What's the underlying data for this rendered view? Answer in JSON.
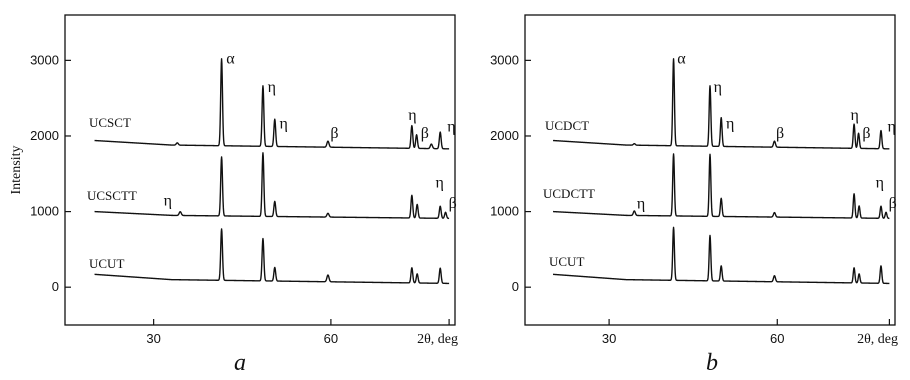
{
  "chart_data": [
    {
      "type": "line",
      "panel_label": "a",
      "ylabel": "Intensity",
      "xlabel": "2θ, deg",
      "xlim": [
        15,
        81
      ],
      "ylim": [
        -500,
        3600
      ],
      "x_ticks": [
        30,
        60
      ],
      "y_ticks": [
        0,
        1000,
        2000,
        3000
      ],
      "series": [
        {
          "name": "UCSCT",
          "offset": 1800,
          "baseline": [
            [
              20,
              140
            ],
            [
              33,
              80
            ],
            [
              80,
              30
            ]
          ],
          "peaks": [
            {
              "x": 34.0,
              "h": 30,
              "w": 0.35
            },
            {
              "x": 41.5,
              "h": 1150,
              "w": 0.3
            },
            {
              "x": 48.5,
              "h": 800,
              "w": 0.3
            },
            {
              "x": 50.5,
              "h": 360,
              "w": 0.3
            },
            {
              "x": 59.5,
              "h": 80,
              "w": 0.35
            },
            {
              "x": 73.7,
              "h": 300,
              "w": 0.3
            },
            {
              "x": 74.5,
              "h": 180,
              "w": 0.3
            },
            {
              "x": 77.0,
              "h": 60,
              "w": 0.35
            },
            {
              "x": 78.5,
              "h": 220,
              "w": 0.3
            }
          ],
          "annotations": [
            {
              "text": "α",
              "x": 43.0,
              "y": 2960
            },
            {
              "text": "η",
              "x": 50.0,
              "y": 2580
            },
            {
              "text": "η",
              "x": 52.0,
              "y": 2100
            },
            {
              "text": "β",
              "x": 60.6,
              "y": 1970
            },
            {
              "text": "η",
              "x": 73.8,
              "y": 2210
            },
            {
              "text": "β",
              "x": 75.9,
              "y": 1970
            },
            {
              "text": "η",
              "x": 80.4,
              "y": 2060
            }
          ]
        },
        {
          "name": "UCSCTT",
          "offset": 850,
          "baseline": [
            [
              20,
              150
            ],
            [
              33,
              100
            ],
            [
              80,
              60
            ]
          ],
          "peaks": [
            {
              "x": 34.5,
              "h": 50,
              "w": 0.35
            },
            {
              "x": 41.5,
              "h": 780,
              "w": 0.3
            },
            {
              "x": 48.5,
              "h": 840,
              "w": 0.3
            },
            {
              "x": 50.5,
              "h": 200,
              "w": 0.3
            },
            {
              "x": 59.5,
              "h": 50,
              "w": 0.35
            },
            {
              "x": 73.7,
              "h": 300,
              "w": 0.3
            },
            {
              "x": 74.6,
              "h": 180,
              "w": 0.3
            },
            {
              "x": 78.5,
              "h": 160,
              "w": 0.3
            },
            {
              "x": 79.4,
              "h": 80,
              "w": 0.3
            }
          ],
          "annotations": [
            {
              "text": "η",
              "x": 32.4,
              "y": 1080
            },
            {
              "text": "η",
              "x": 78.4,
              "y": 1320
            },
            {
              "text": "β",
              "x": 80.6,
              "y": 1050
            }
          ]
        },
        {
          "name": "UCUT",
          "offset": 0,
          "baseline": [
            [
              20,
              170
            ],
            [
              33,
              100
            ],
            [
              80,
              50
            ]
          ],
          "peaks": [
            {
              "x": 41.5,
              "h": 680,
              "w": 0.3
            },
            {
              "x": 48.5,
              "h": 560,
              "w": 0.3
            },
            {
              "x": 50.5,
              "h": 180,
              "w": 0.3
            },
            {
              "x": 59.5,
              "h": 90,
              "w": 0.35
            },
            {
              "x": 73.7,
              "h": 200,
              "w": 0.3
            },
            {
              "x": 74.6,
              "h": 120,
              "w": 0.3
            },
            {
              "x": 78.5,
              "h": 200,
              "w": 0.3
            }
          ],
          "annotations": []
        }
      ]
    },
    {
      "type": "line",
      "panel_label": "b",
      "ylabel": "",
      "xlabel": "2θ, deg",
      "xlim": [
        15,
        81
      ],
      "ylim": [
        -500,
        3600
      ],
      "x_ticks": [
        30,
        60
      ],
      "y_ticks": [
        0,
        1000,
        2000,
        3000
      ],
      "series": [
        {
          "name": "UCDCT",
          "offset": 1800,
          "baseline": [
            [
              20,
              140
            ],
            [
              33,
              80
            ],
            [
              80,
              30
            ]
          ],
          "peaks": [
            {
              "x": 34.5,
              "h": 20,
              "w": 0.35
            },
            {
              "x": 41.5,
              "h": 1150,
              "w": 0.3
            },
            {
              "x": 48.0,
              "h": 800,
              "w": 0.3
            },
            {
              "x": 50.0,
              "h": 380,
              "w": 0.3
            },
            {
              "x": 59.5,
              "h": 80,
              "w": 0.35
            },
            {
              "x": 73.7,
              "h": 320,
              "w": 0.3
            },
            {
              "x": 74.5,
              "h": 200,
              "w": 0.3
            },
            {
              "x": 78.5,
              "h": 240,
              "w": 0.3
            }
          ],
          "annotations": [
            {
              "text": "α",
              "x": 42.9,
              "y": 2960
            },
            {
              "text": "η",
              "x": 49.4,
              "y": 2580
            },
            {
              "text": "η",
              "x": 51.6,
              "y": 2100
            },
            {
              "text": "β",
              "x": 60.5,
              "y": 1970
            },
            {
              "text": "η",
              "x": 73.8,
              "y": 2210
            },
            {
              "text": "β",
              "x": 75.9,
              "y": 1970
            },
            {
              "text": "η",
              "x": 80.4,
              "y": 2060
            }
          ]
        },
        {
          "name": "UCDCTT",
          "offset": 850,
          "baseline": [
            [
              20,
              150
            ],
            [
              33,
              100
            ],
            [
              80,
              60
            ]
          ],
          "peaks": [
            {
              "x": 34.5,
              "h": 60,
              "w": 0.35
            },
            {
              "x": 41.5,
              "h": 820,
              "w": 0.3
            },
            {
              "x": 48.0,
              "h": 820,
              "w": 0.3
            },
            {
              "x": 50.0,
              "h": 240,
              "w": 0.3
            },
            {
              "x": 59.5,
              "h": 60,
              "w": 0.35
            },
            {
              "x": 73.7,
              "h": 320,
              "w": 0.3
            },
            {
              "x": 74.6,
              "h": 160,
              "w": 0.3
            },
            {
              "x": 78.5,
              "h": 160,
              "w": 0.3
            },
            {
              "x": 79.4,
              "h": 80,
              "w": 0.3
            }
          ],
          "annotations": [
            {
              "text": "η",
              "x": 35.7,
              "y": 1040
            },
            {
              "text": "η",
              "x": 78.3,
              "y": 1320
            },
            {
              "text": "β",
              "x": 80.6,
              "y": 1050
            }
          ]
        },
        {
          "name": "UCUT",
          "offset": 0,
          "baseline": [
            [
              20,
              170
            ],
            [
              33,
              100
            ],
            [
              80,
              50
            ]
          ],
          "peaks": [
            {
              "x": 41.5,
              "h": 700,
              "w": 0.3
            },
            {
              "x": 48.0,
              "h": 600,
              "w": 0.3
            },
            {
              "x": 50.0,
              "h": 200,
              "w": 0.3
            },
            {
              "x": 59.5,
              "h": 80,
              "w": 0.35
            },
            {
              "x": 73.7,
              "h": 200,
              "w": 0.3
            },
            {
              "x": 74.6,
              "h": 120,
              "w": 0.3
            },
            {
              "x": 78.5,
              "h": 230,
              "w": 0.3
            }
          ],
          "annotations": []
        }
      ]
    }
  ]
}
